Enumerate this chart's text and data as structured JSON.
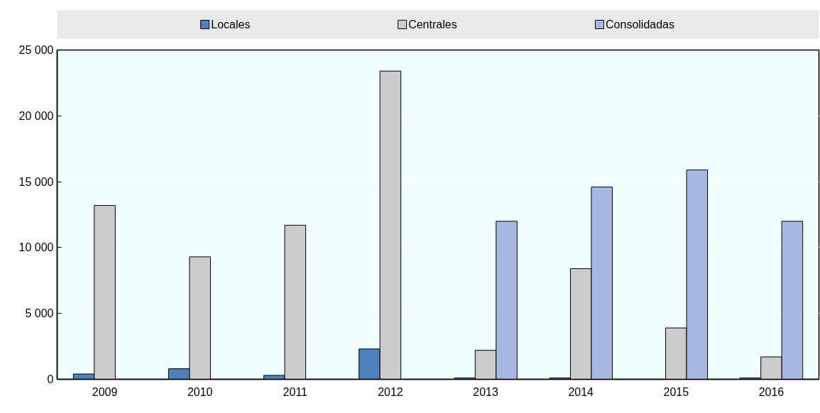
{
  "chart_data": {
    "type": "bar",
    "categories": [
      "2009",
      "2010",
      "2011",
      "2012",
      "2013",
      "2014",
      "2015",
      "2016"
    ],
    "series": [
      {
        "name": "Locales",
        "color": "#4f81bd",
        "values": [
          400,
          800,
          300,
          2300,
          100,
          100,
          null,
          100
        ]
      },
      {
        "name": "Centrales",
        "color": "#cccccc",
        "values": [
          13200,
          9300,
          11700,
          23400,
          2200,
          8400,
          3900,
          1700
        ]
      },
      {
        "name": "Consolidadas",
        "color": "#a7b9e3",
        "values": [
          null,
          null,
          null,
          null,
          12000,
          14600,
          15900,
          12000
        ]
      }
    ],
    "ylim": [
      0,
      25000
    ],
    "yticks": [
      0,
      {
        "value": 5000,
        "label": "5 000"
      },
      {
        "value": 10000,
        "label": "10 000"
      },
      {
        "value": 15000,
        "label": "15 000"
      },
      {
        "value": 20000,
        "label": "20 000"
      },
      {
        "value": 25000,
        "label": "25 000"
      }
    ],
    "grid": "y",
    "legend": "top"
  }
}
